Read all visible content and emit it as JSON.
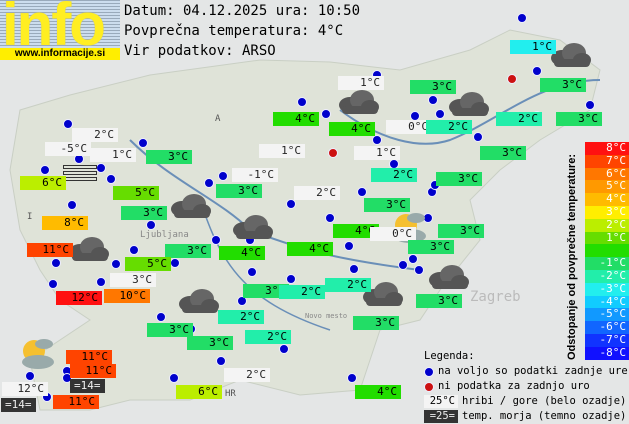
{
  "header": {
    "logo_text": "info",
    "logo_url": "www.informacije.si",
    "date_line": "Datum: 04.12.2025 ura: 10:50",
    "avg_line": "Povprečna temperatura: 4°C",
    "source_line": "Vir podatkov: ARSO"
  },
  "map_labels": [
    "A",
    "I",
    "HR",
    "Ljubljana",
    "Novo mesto",
    "Zagreb"
  ],
  "colors": {
    "8": "#ff1111",
    "7": "#ff4400",
    "6": "#ff7700",
    "5": "#ff9900",
    "4": "#ffbb00",
    "3": "#ffee00",
    "2": "#bbee00",
    "1": "#66dd00",
    "0": "#22dd00",
    "-1": "#22dd66",
    "-2": "#22eeaa",
    "-3": "#22eeee",
    "-4": "#11ccff",
    "-5": "#1199ff",
    "-6": "#1166ff",
    "-7": "#1133ff",
    "-8": "#1111ff"
  },
  "stations": [
    {
      "t": "1°C",
      "d": -3
    },
    {
      "t": "1°C",
      "w": 1
    },
    {
      "t": "3°C",
      "d": -1
    },
    {
      "t": "3°C",
      "d": -1
    },
    {
      "t": "4°C",
      "d": 0
    },
    {
      "t": "4°C",
      "d": 0
    },
    {
      "t": "0°C",
      "w": 1
    },
    {
      "t": "2°C",
      "d": -2
    },
    {
      "t": "2°C",
      "d": -2
    },
    {
      "t": "3°C",
      "d": -1
    },
    {
      "t": "2°C",
      "w": 1
    },
    {
      "t": "-5°C",
      "w": 1
    },
    {
      "t": "1°C",
      "w": 1
    },
    {
      "t": "3°C",
      "d": -1
    },
    {
      "t": "1°C",
      "w": 1
    },
    {
      "t": "1°C",
      "w": 1
    },
    {
      "t": "3°C",
      "d": -1
    },
    {
      "t": "2°C",
      "d": -2
    },
    {
      "t": "-1°C",
      "w": 1
    },
    {
      "t": "6°C",
      "d": 2
    },
    {
      "t": "3°C",
      "d": -1
    },
    {
      "t": "5°C",
      "d": 1
    },
    {
      "t": "3°C",
      "d": -1
    },
    {
      "t": "2°C",
      "w": 1
    },
    {
      "t": "3°C",
      "d": -1
    },
    {
      "t": "3°C",
      "d": -1
    },
    {
      "t": "8°C",
      "d": 4
    },
    {
      "t": "4°C",
      "d": 0
    },
    {
      "t": "0°C",
      "w": 1
    },
    {
      "t": "3°C",
      "d": -1
    },
    {
      "t": "11°C",
      "d": 7
    },
    {
      "t": "3°C",
      "d": -1
    },
    {
      "t": "4°C",
      "d": 0
    },
    {
      "t": "4°C",
      "d": 0
    },
    {
      "t": "3°C",
      "d": -1
    },
    {
      "t": "5°C",
      "d": 1
    },
    {
      "t": "3°C",
      "w": 1
    },
    {
      "t": "12°C",
      "d": 8
    },
    {
      "t": "10°C",
      "d": 6
    },
    {
      "t": "3°C",
      "d": -1
    },
    {
      "t": "2°C",
      "d": -2
    },
    {
      "t": "2°C",
      "d": -2
    },
    {
      "t": "3°C",
      "d": -1
    },
    {
      "t": "3°C",
      "d": -1
    },
    {
      "t": "2°C",
      "d": -2
    },
    {
      "t": "3°C",
      "d": -1
    },
    {
      "t": "3°C",
      "d": -1
    },
    {
      "t": "2°C",
      "d": -2
    },
    {
      "t": "11°C",
      "d": 7
    },
    {
      "t": "11°C",
      "d": 7
    },
    {
      "t": "12°C",
      "w": 1
    },
    {
      "t": "=14=",
      "sea": 1
    },
    {
      "t": "6°C",
      "d": 2
    },
    {
      "t": "2°C",
      "w": 1
    },
    {
      "t": "11°C",
      "d": 7
    },
    {
      "t": "=14=",
      "sea": 1
    },
    {
      "t": "4°C",
      "d": 0
    }
  ],
  "station_dots": [
    "ok",
    "ok",
    "ok",
    "ok",
    "ok",
    "ok",
    "ok",
    "ok",
    "ok",
    "ok",
    "ok",
    "ok",
    "ok",
    "ok",
    "ok",
    "ok",
    "ok",
    "ok",
    "ok",
    "ok",
    "ok",
    "ok",
    "ok",
    "ok",
    "ok",
    "ok",
    "ok",
    "ok",
    "ok",
    "ok",
    "ok",
    "ok",
    "ok",
    "ok",
    "ok",
    "ok",
    "ok",
    "ok",
    "ok",
    "ok",
    "ok",
    "ok",
    "ok",
    "ok",
    "ok",
    "ok",
    "ok",
    "ok",
    "ok",
    "ok",
    "ok",
    "ok",
    "ok",
    "ok",
    "ok",
    "missing",
    "missing"
  ],
  "scale": {
    "title": "Odstopanje od povprečne temperature:",
    "steps": [
      "8°C",
      "7°C",
      "6°C",
      "5°C",
      "4°C",
      "3°C",
      "2°C",
      "1°C",
      "",
      "-1°C",
      "-2°C",
      "-3°C",
      "-4°C",
      "-5°C",
      "-6°C",
      "-7°C",
      "-8°C"
    ]
  },
  "legend": {
    "title": "Legenda:",
    "available": "na voljo so podatki zadnje ure",
    "missing": "ni podatka za zadnjo uro",
    "mountain_sample": "25°C",
    "mountain": "hribi / gore (belo ozadje)",
    "sea_sample": "=25=",
    "sea": "temp. morja (temno ozadje)"
  }
}
